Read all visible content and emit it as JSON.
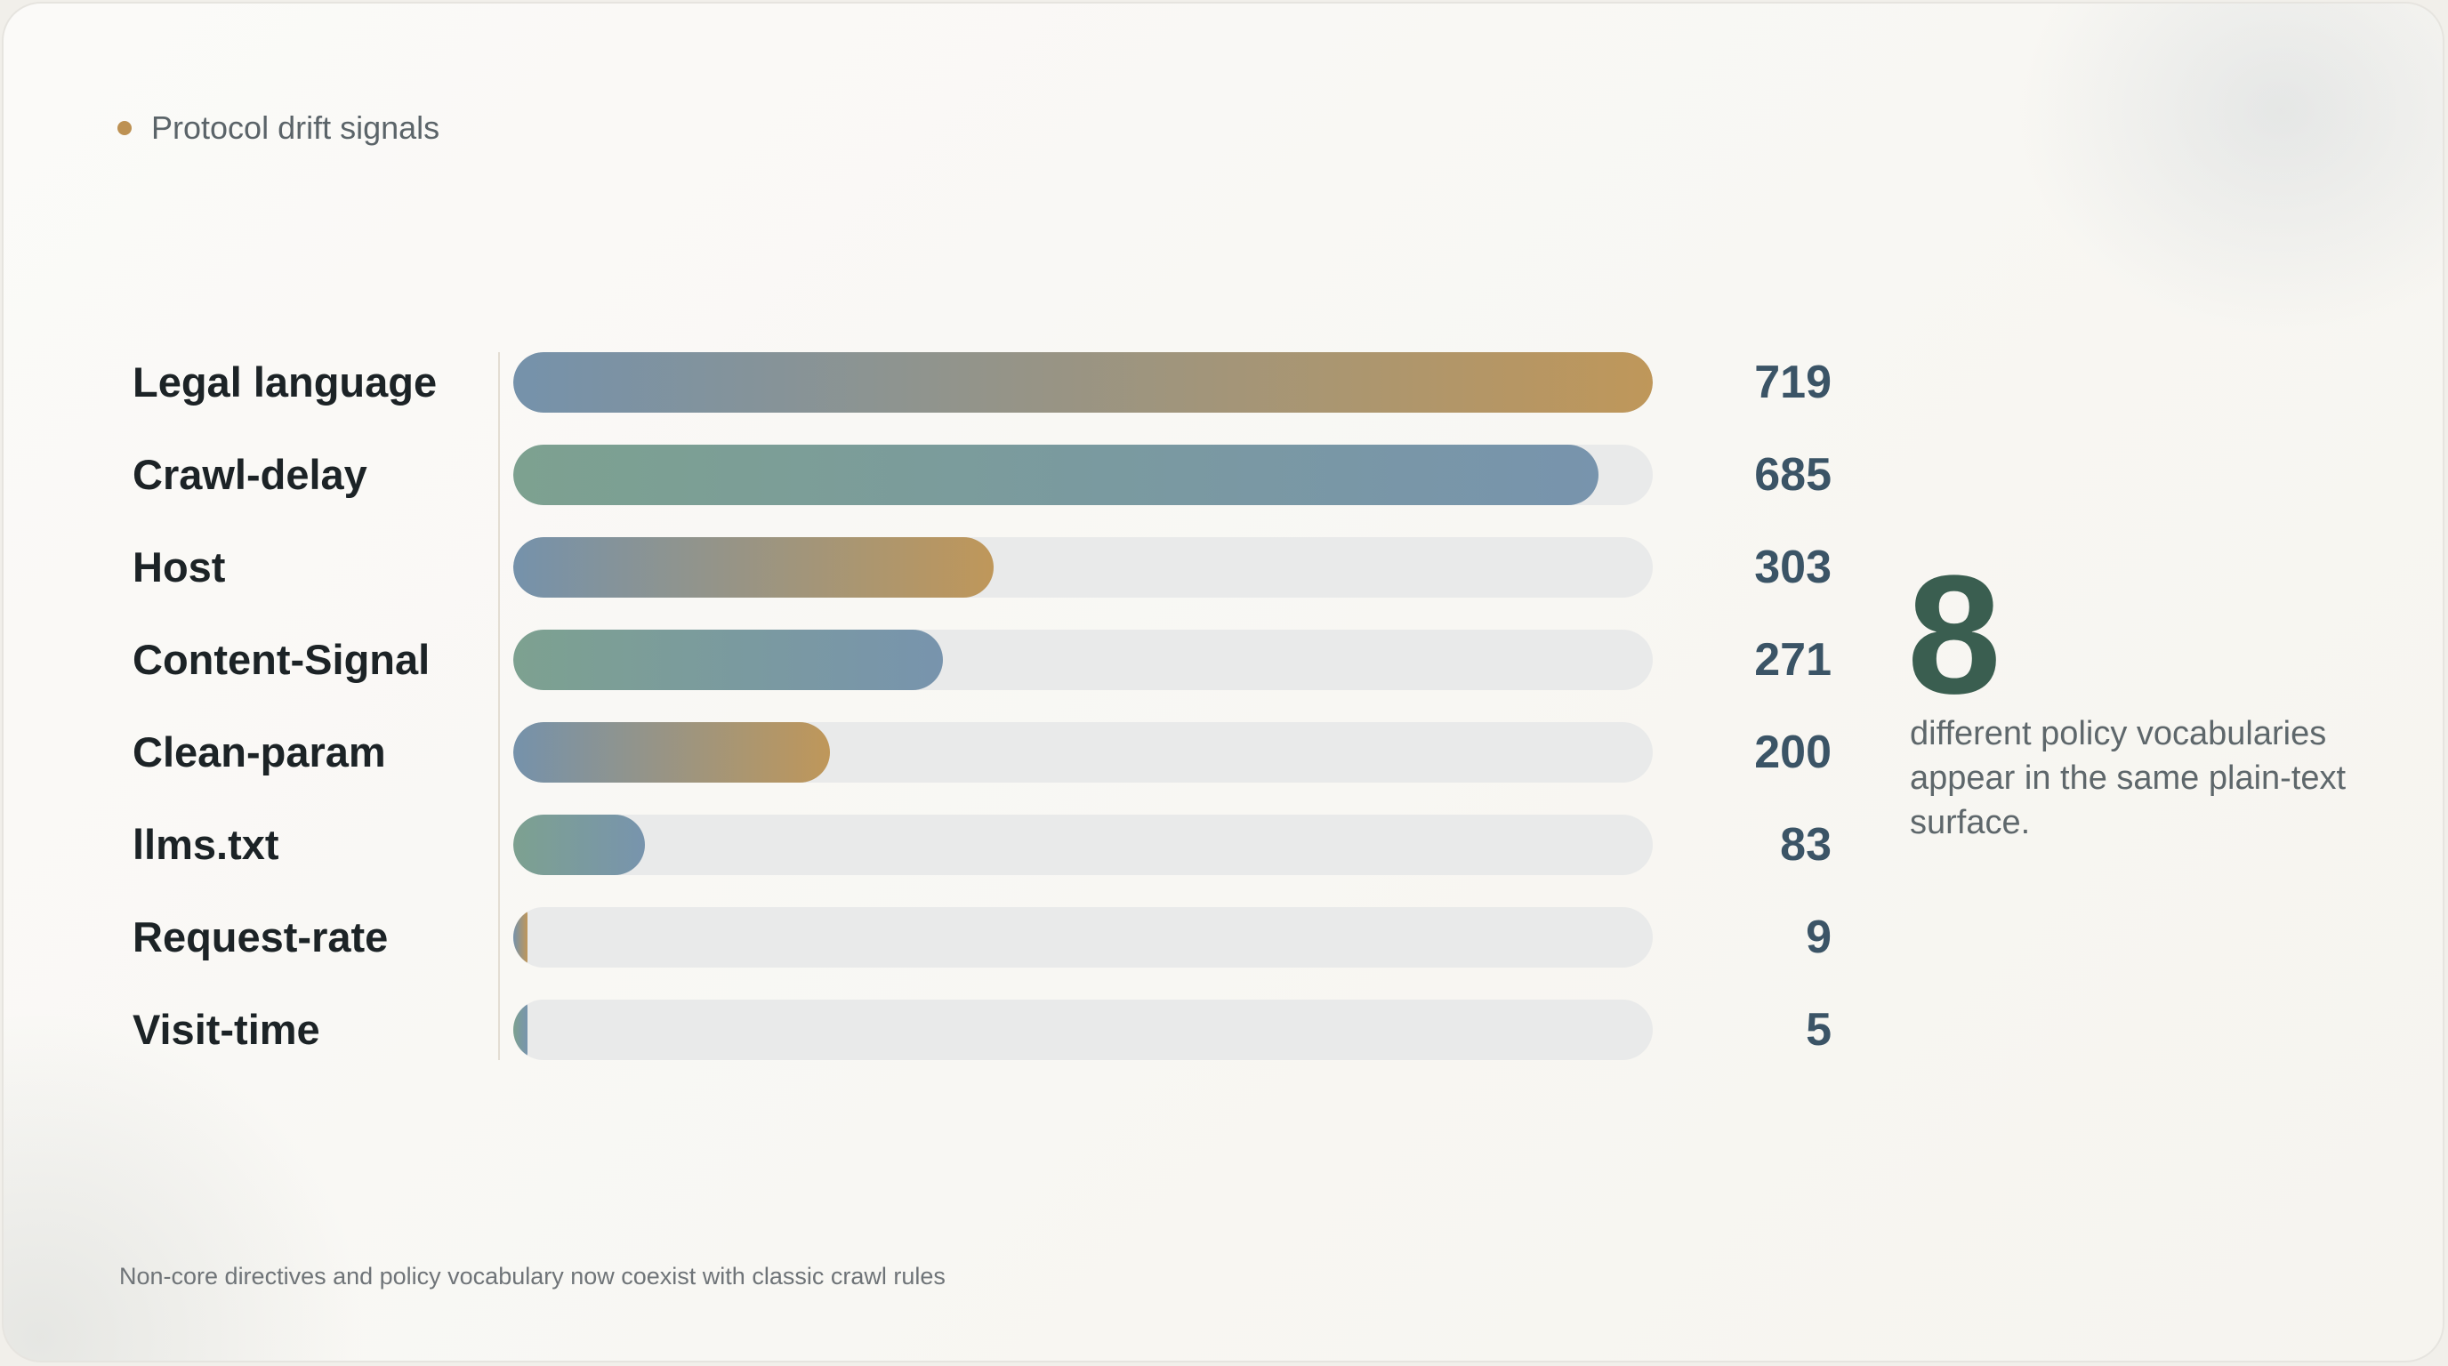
{
  "eyebrow": "Protocol drift signals",
  "chart_data": {
    "type": "bar",
    "orientation": "horizontal",
    "categories": [
      "Legal language",
      "Crawl-delay",
      "Host",
      "Content-Signal",
      "Clean-param",
      "llms.txt",
      "Request-rate",
      "Visit-time"
    ],
    "values": [
      719,
      685,
      303,
      271,
      200,
      83,
      9,
      5
    ],
    "xlim": [
      0,
      719
    ],
    "grid": false,
    "legend": "none"
  },
  "colors": {
    "grad_a": [
      "#7592ab",
      "#bf975a"
    ],
    "grad_b": [
      "#7da190",
      "#7894ad"
    ],
    "accent_dot": "#bd9153",
    "stat_color": "#3a5e50"
  },
  "stat": {
    "number": "8",
    "text": "different policy vocabularies appear in the same plain-text surface."
  },
  "footnote": "Non-core directives and policy vocabulary now coexist with classic crawl rules"
}
